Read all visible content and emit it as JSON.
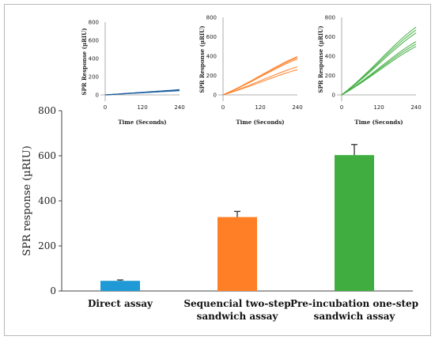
{
  "chart_data": {
    "main": {
      "type": "bar",
      "categories": [
        [
          "Direct assay"
        ],
        [
          "Sequencial two-step",
          "sandwich assay"
        ],
        [
          "Pre-incubation one-step",
          "sandwich assay"
        ]
      ],
      "values": [
        45,
        328,
        603
      ],
      "errors": [
        4,
        25,
        47
      ],
      "colors": [
        "#1f9ad6",
        "#ff7f27",
        "#3fad3f"
      ],
      "ylabel": "SPR response (µRIU)",
      "ylim": [
        0,
        800
      ],
      "yticks": [
        0,
        200,
        400,
        600,
        800
      ],
      "grid": false
    },
    "insets": [
      {
        "type": "line",
        "color": "#1f5f9e",
        "xlabel": "Time (Seconds)",
        "ylabel": "SPR Response (µRIU)",
        "xlim": [
          0,
          240
        ],
        "ylim": [
          0,
          800
        ],
        "xticks": [
          0,
          120,
          240
        ],
        "yticks": [
          0,
          200,
          400,
          600,
          800
        ],
        "series_end_values": [
          46,
          50,
          54,
          58
        ]
      },
      {
        "type": "line",
        "color": "#ff7f27",
        "xlabel": "Time (Seconds)",
        "ylabel": "SPR Response (µRIU)",
        "xlim": [
          0,
          240
        ],
        "ylim": [
          0,
          800
        ],
        "xticks": [
          0,
          120,
          240
        ],
        "yticks": [
          0,
          200,
          400,
          600,
          800
        ],
        "series_end_values": [
          260,
          290,
          370,
          385,
          395
        ]
      },
      {
        "type": "line",
        "color": "#3fad3f",
        "xlabel": "Time (Seconds)",
        "ylabel": "SPR Response (µRIU)",
        "xlim": [
          0,
          240
        ],
        "ylim": [
          0,
          800
        ],
        "xticks": [
          0,
          120,
          240
        ],
        "yticks": [
          0,
          200,
          400,
          600,
          800
        ],
        "series_end_values": [
          500,
          525,
          550,
          640,
          670,
          700
        ]
      }
    ]
  }
}
